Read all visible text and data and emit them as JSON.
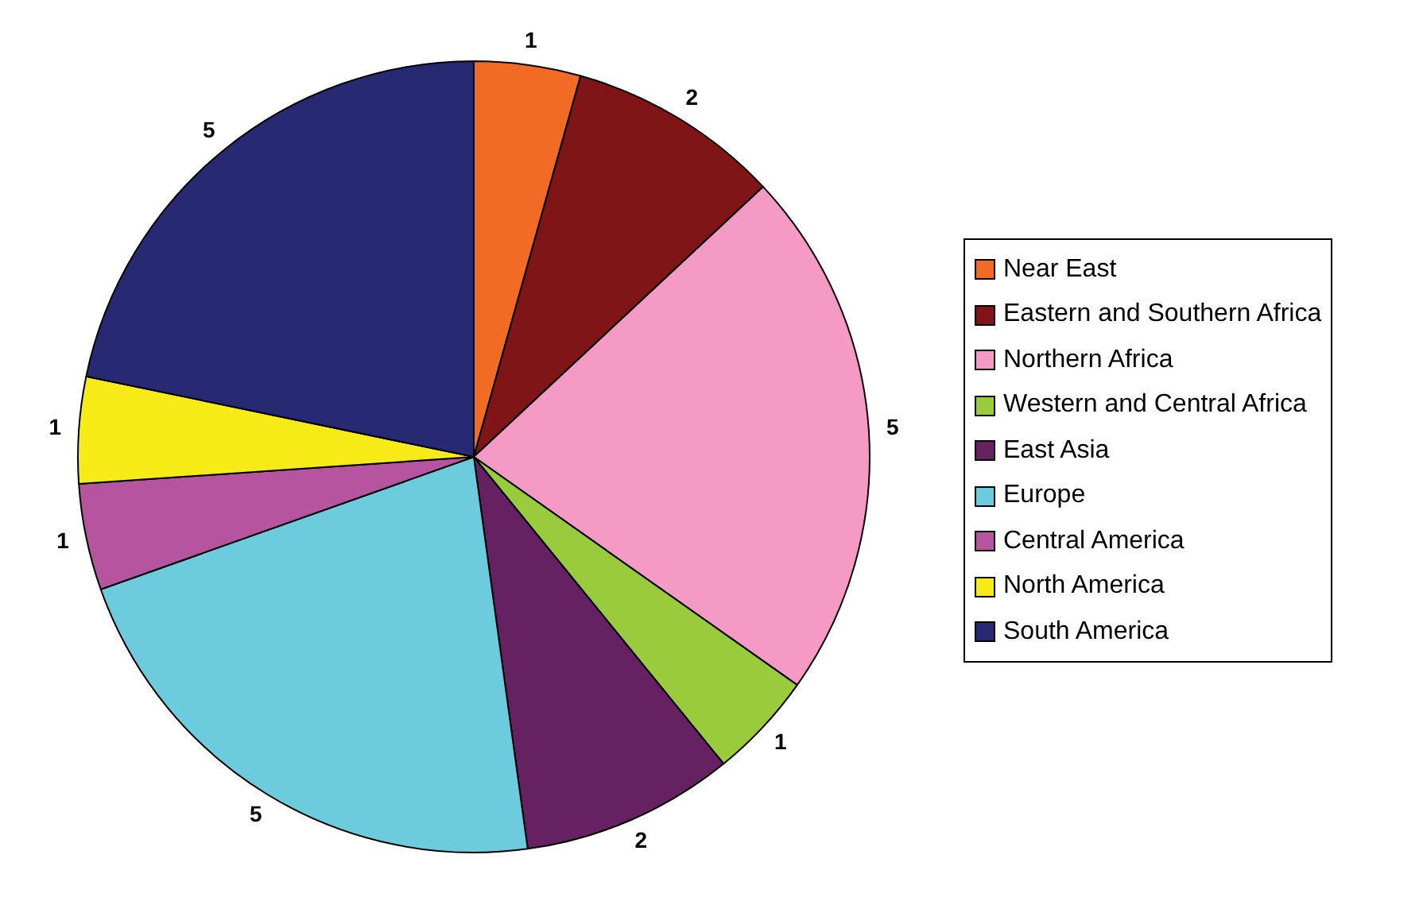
{
  "chart_data": {
    "type": "pie",
    "categories": [
      "Near East",
      "Eastern and Southern Africa",
      "Northern Africa",
      "Western and Central Africa",
      "East Asia",
      "Europe",
      "Central America",
      "North America",
      "South America"
    ],
    "values": [
      1,
      2,
      5,
      1,
      2,
      5,
      1,
      1,
      5
    ],
    "colors": [
      "#f26b24",
      "#7f1517",
      "#f49ac4",
      "#9acb3c",
      "#662163",
      "#6ccbdc",
      "#b6549f",
      "#f6eb16",
      "#272a72"
    ],
    "data_labels": true,
    "legend": "right"
  }
}
